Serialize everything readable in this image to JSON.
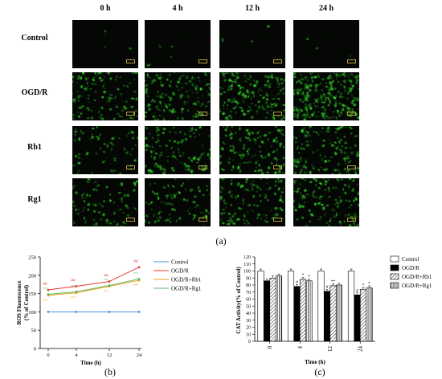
{
  "figure_a": {
    "caption": "(a)",
    "time_headers": [
      "0 h",
      "4 h",
      "12 h",
      "24 h"
    ],
    "row_labels": [
      "Control",
      "OGD/R",
      "Rb1",
      "Rg1"
    ],
    "fluorescence_color": "#2ecc40",
    "intensity_levels": [
      [
        0.01,
        0.02,
        0.01,
        0.01
      ],
      [
        0.45,
        0.55,
        0.65,
        0.95
      ],
      [
        0.25,
        0.45,
        0.5,
        0.55
      ],
      [
        0.3,
        0.35,
        0.45,
        0.5
      ]
    ]
  },
  "chart_data": [
    {
      "id": "b",
      "type": "line",
      "caption": "(b)",
      "ylabel": "ROS Fluorescence\n(% of Control)",
      "xlabel": "Time (h)",
      "x": [
        0,
        4,
        12,
        24
      ],
      "x_ticks": [
        "0",
        "4",
        "12",
        "24"
      ],
      "ylim": [
        0,
        250
      ],
      "y_ticks": [
        "0",
        "50",
        "100",
        "150",
        "200",
        "250"
      ],
      "series": [
        {
          "name": "Control",
          "color": "#4a90e2",
          "values": [
            100,
            100,
            100,
            100
          ]
        },
        {
          "name": "OGD/R",
          "color": "#e53935",
          "values": [
            160,
            170,
            183,
            222
          ],
          "annotations": [
            "##",
            "##",
            "##",
            "##"
          ]
        },
        {
          "name": "OGD/R+Rb1",
          "color": "#f39c12",
          "values": [
            145,
            152,
            170,
            186
          ],
          "annotations": [
            "**",
            "**",
            "**",
            "**"
          ]
        },
        {
          "name": "OGD/R+Rg1",
          "color": "#5cb85c",
          "values": [
            148,
            155,
            172,
            190
          ],
          "annotations": [
            "**",
            "**",
            "**",
            "**"
          ]
        }
      ],
      "legend_position": "right"
    },
    {
      "id": "c",
      "type": "bar",
      "caption": "(c)",
      "ylabel": "CAT Activity(% of Control)",
      "xlabel": "Time (h)",
      "categories": [
        "0",
        "4",
        "12",
        "24"
      ],
      "ylim": [
        0,
        120
      ],
      "y_ticks": [
        "0",
        "10",
        "20",
        "30",
        "40",
        "50",
        "60",
        "70",
        "80",
        "90",
        "100",
        "110",
        "120"
      ],
      "series": [
        {
          "name": "Control",
          "pattern": "open",
          "values": [
            100,
            100,
            100,
            100
          ]
        },
        {
          "name": "OGD/R",
          "pattern": "solid",
          "values": [
            86,
            78,
            71,
            66
          ],
          "annotations": [
            "",
            "#",
            "#",
            "#"
          ]
        },
        {
          "name": "OGD/R+Rb1",
          "pattern": "diagonal",
          "values": [
            90,
            88,
            79,
            74
          ],
          "annotations": [
            "",
            "*",
            "**",
            "*"
          ]
        },
        {
          "name": "OGD/R+Rg1",
          "pattern": "vertical",
          "values": [
            93,
            86,
            80,
            76
          ],
          "annotations": [
            "",
            "*",
            "",
            "*"
          ]
        }
      ],
      "legend_position": "right"
    }
  ]
}
